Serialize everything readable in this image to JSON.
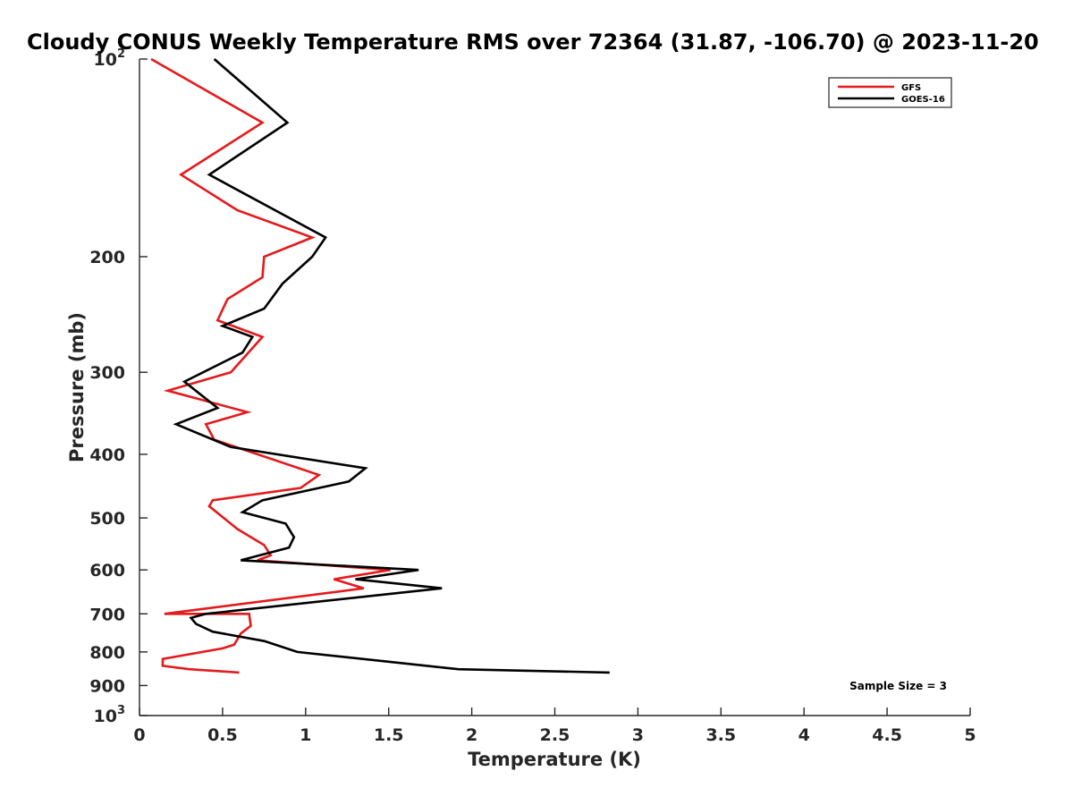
{
  "chart_data": {
    "type": "line",
    "title": "Cloudy CONUS Weekly Temperature RMS over 72364 (31.87, -106.70) @ 2023-11-20",
    "xlabel": "Temperature (K)",
    "ylabel": "Pressure (mb)",
    "xlim": [
      0,
      5
    ],
    "ylim": [
      100,
      1000
    ],
    "yscale": "log",
    "y_reversed": true,
    "xticks": [
      "0",
      "0.5",
      "1",
      "1.5",
      "2",
      "2.5",
      "3",
      "3.5",
      "4",
      "4.5",
      "5"
    ],
    "yticks": [
      {
        "value": 100,
        "base": "10",
        "exp": "2",
        "label": ""
      },
      {
        "value": 200,
        "base": "",
        "exp": "",
        "label": "200"
      },
      {
        "value": 300,
        "base": "",
        "exp": "",
        "label": "300"
      },
      {
        "value": 400,
        "base": "",
        "exp": "",
        "label": "400"
      },
      {
        "value": 500,
        "base": "",
        "exp": "",
        "label": "500"
      },
      {
        "value": 600,
        "base": "",
        "exp": "",
        "label": "600"
      },
      {
        "value": 700,
        "base": "",
        "exp": "",
        "label": "700"
      },
      {
        "value": 800,
        "base": "",
        "exp": "",
        "label": "800"
      },
      {
        "value": 900,
        "base": "",
        "exp": "",
        "label": "900"
      },
      {
        "value": 1000,
        "base": "10",
        "exp": "3",
        "label": ""
      }
    ],
    "grid": false,
    "legend_position": "top-right",
    "annotation": "Sample Size = 3",
    "series": [
      {
        "name": "GFS",
        "color": "#e41a1c",
        "points": [
          [
            0.07,
            100
          ],
          [
            0.74,
            125
          ],
          [
            0.25,
            150
          ],
          [
            0.59,
            170
          ],
          [
            1.04,
            187
          ],
          [
            0.75,
            200
          ],
          [
            0.74,
            215
          ],
          [
            0.53,
            232
          ],
          [
            0.47,
            250
          ],
          [
            0.74,
            265
          ],
          [
            0.55,
            300
          ],
          [
            0.17,
            320
          ],
          [
            0.65,
            345
          ],
          [
            0.4,
            360
          ],
          [
            0.45,
            380
          ],
          [
            1.08,
            430
          ],
          [
            0.97,
            450
          ],
          [
            0.44,
            470
          ],
          [
            0.42,
            480
          ],
          [
            0.59,
            520
          ],
          [
            0.75,
            550
          ],
          [
            0.79,
            570
          ],
          [
            0.71,
            580
          ],
          [
            1.51,
            600
          ],
          [
            1.17,
            620
          ],
          [
            1.35,
            640
          ],
          [
            0.15,
            700
          ],
          [
            0.66,
            700
          ],
          [
            0.67,
            730
          ],
          [
            0.61,
            750
          ],
          [
            0.57,
            780
          ],
          [
            0.5,
            790
          ],
          [
            0.14,
            820
          ],
          [
            0.14,
            840
          ],
          [
            0.3,
            850
          ],
          [
            0.6,
            860
          ]
        ]
      },
      {
        "name": "GOES-16",
        "color": "#000000",
        "points": [
          [
            0.45,
            100
          ],
          [
            0.89,
            125
          ],
          [
            0.42,
            150
          ],
          [
            1.12,
            187
          ],
          [
            1.04,
            200
          ],
          [
            0.86,
            220
          ],
          [
            0.75,
            240
          ],
          [
            0.5,
            255
          ],
          [
            0.68,
            265
          ],
          [
            0.62,
            280
          ],
          [
            0.27,
            310
          ],
          [
            0.47,
            340
          ],
          [
            0.22,
            360
          ],
          [
            0.55,
            390
          ],
          [
            1.36,
            420
          ],
          [
            1.26,
            440
          ],
          [
            0.74,
            470
          ],
          [
            0.62,
            490
          ],
          [
            0.88,
            510
          ],
          [
            0.93,
            535
          ],
          [
            0.9,
            555
          ],
          [
            0.61,
            580
          ],
          [
            1.68,
            600
          ],
          [
            1.3,
            620
          ],
          [
            1.82,
            640
          ],
          [
            0.4,
            700
          ],
          [
            0.31,
            710
          ],
          [
            0.34,
            725
          ],
          [
            0.44,
            745
          ],
          [
            0.75,
            770
          ],
          [
            0.95,
            800
          ],
          [
            1.92,
            850
          ],
          [
            2.83,
            860
          ]
        ]
      }
    ]
  }
}
